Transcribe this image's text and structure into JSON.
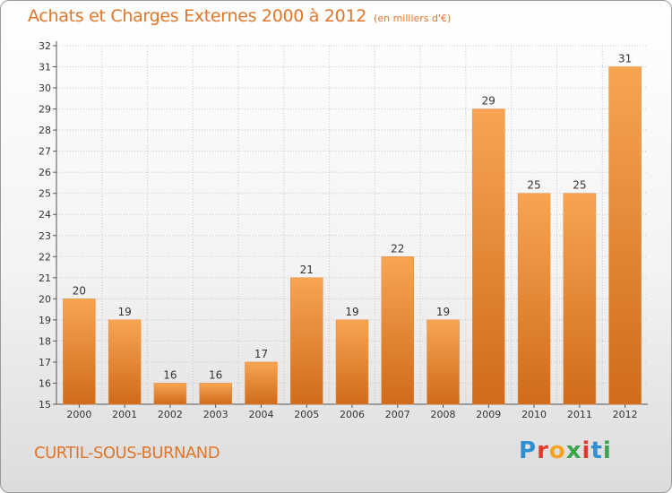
{
  "header": {
    "title": "Achats et Charges Externes 2000 à 2012",
    "unit": "(en milliers d'€)"
  },
  "footer": {
    "commune": "CURTIL-SOUS-BURNAND",
    "logo_letters": [
      "P",
      "r",
      "o",
      "x",
      "i",
      "t",
      "i"
    ],
    "logo_colors": [
      "#2f8fd0",
      "#e23b2e",
      "#f2a422",
      "#3aa64b",
      "#e23b2e",
      "#2f8fd0",
      "#3aa64b"
    ]
  },
  "chart_data": {
    "type": "bar",
    "categories": [
      "2000",
      "2001",
      "2002",
      "2003",
      "2004",
      "2005",
      "2006",
      "2007",
      "2008",
      "2009",
      "2010",
      "2011",
      "2012"
    ],
    "values": [
      20,
      19,
      16,
      16,
      17,
      21,
      19,
      22,
      19,
      29,
      25,
      25,
      31
    ],
    "data_labels": [
      "20",
      "19",
      "16",
      "16",
      "17",
      "21",
      "19",
      "22",
      "19",
      "29",
      "25",
      "25",
      "31"
    ],
    "ylim": [
      15,
      32
    ],
    "yticks": [
      15,
      16,
      17,
      18,
      19,
      20,
      21,
      22,
      23,
      24,
      25,
      26,
      27,
      28,
      29,
      30,
      31,
      32
    ],
    "grid": true,
    "bar_color_top": "#f7a552",
    "bar_color_bottom": "#d06b1a",
    "title_color": "#e0762a"
  }
}
